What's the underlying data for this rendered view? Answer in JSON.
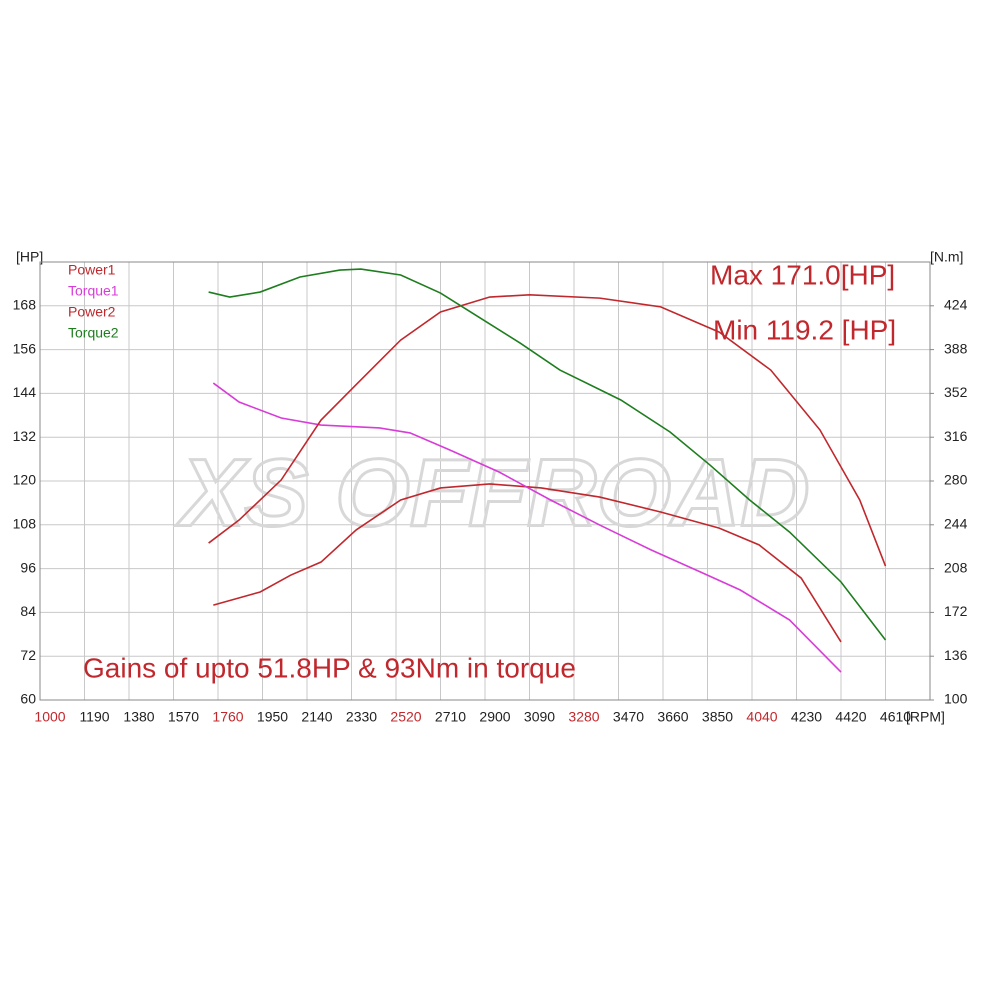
{
  "chart_data": {
    "type": "line",
    "x_label": "[RPM]",
    "y_label": "[HP]",
    "y2_label": "[N.m]",
    "watermark": "XS OFFROAD",
    "annotations": [
      "Max 171.0[HP]",
      "Min 119.2 [HP]",
      "Gains of upto 51.8HP & 93Nm in torque"
    ],
    "annotation_color": "#c0282d",
    "xlim": [
      1000,
      4800
    ],
    "xticks": [
      1000,
      1190,
      1380,
      1570,
      1760,
      1950,
      2140,
      2330,
      2520,
      2710,
      2900,
      3090,
      3280,
      3470,
      3660,
      3850,
      4040,
      4230,
      4420,
      4610
    ],
    "xtick_label_colors": [
      "#c0282d",
      "#222222",
      "#222222",
      "#222222",
      "#c0282d",
      "#222222",
      "#222222",
      "#222222",
      "#c0282d",
      "#222222",
      "#222222",
      "#222222",
      "#c0282d",
      "#222222",
      "#222222",
      "#222222",
      "#c0282d",
      "#222222",
      "#222222",
      "#222222"
    ],
    "ylim": [
      60,
      180
    ],
    "yticks": [
      60,
      72,
      84,
      96,
      108,
      120,
      132,
      144,
      156,
      168
    ],
    "y2lim": [
      100,
      460
    ],
    "y2ticks": [
      100,
      136,
      172,
      208,
      244,
      280,
      316,
      352,
      388,
      424
    ],
    "grid": true,
    "legend": "upper left",
    "series": [
      {
        "name": "Power1",
        "color": "#c0282d",
        "x": [
          1740,
          1940,
          2070,
          2200,
          2350,
          2540,
          2710,
          2920,
          3140,
          3390,
          3650,
          3900,
          4070,
          4250,
          4420
        ],
        "values": [
          86.0,
          89.6,
          94.2,
          97.8,
          106.6,
          114.8,
          118.1,
          119.2,
          118.1,
          115.6,
          111.5,
          107.1,
          102.5,
          93.4,
          75.9
        ]
      },
      {
        "name": "Torque1",
        "color": "#d83cd8",
        "axis": "y2",
        "x": [
          1740,
          1850,
          2030,
          2200,
          2450,
          2580,
          2750,
          2960,
          3180,
          3390,
          3610,
          3820,
          3990,
          4200,
          4420
        ],
        "values": [
          360.5,
          344.9,
          331.8,
          326.0,
          323.6,
          319.5,
          305.5,
          287.4,
          264.4,
          243.8,
          223.3,
          205.2,
          190.4,
          165.8,
          123.0
        ]
      },
      {
        "name": "Power2",
        "color": "#c0282d",
        "x": [
          1720,
          1850,
          2030,
          2200,
          2370,
          2540,
          2710,
          2920,
          3090,
          3390,
          3650,
          3900,
          4120,
          4330,
          4500,
          4610
        ],
        "values": [
          103.0,
          109.3,
          120.3,
          136.7,
          147.7,
          158.6,
          166.3,
          170.4,
          171.0,
          170.1,
          167.7,
          160.8,
          150.4,
          134.0,
          114.8,
          96.7
        ]
      },
      {
        "name": "Torque2",
        "color": "#1e7d1e",
        "axis": "y2",
        "x": [
          1720,
          1810,
          1940,
          2110,
          2280,
          2370,
          2540,
          2710,
          2880,
          3050,
          3220,
          3480,
          3690,
          3860,
          4030,
          4200,
          4420,
          4610
        ],
        "values": [
          435.3,
          431.2,
          435.3,
          447.7,
          453.4,
          454.2,
          449.3,
          434.5,
          413.9,
          393.4,
          371.2,
          346.6,
          320.3,
          293.2,
          264.4,
          238.1,
          197.0,
          149.3
        ]
      }
    ]
  }
}
